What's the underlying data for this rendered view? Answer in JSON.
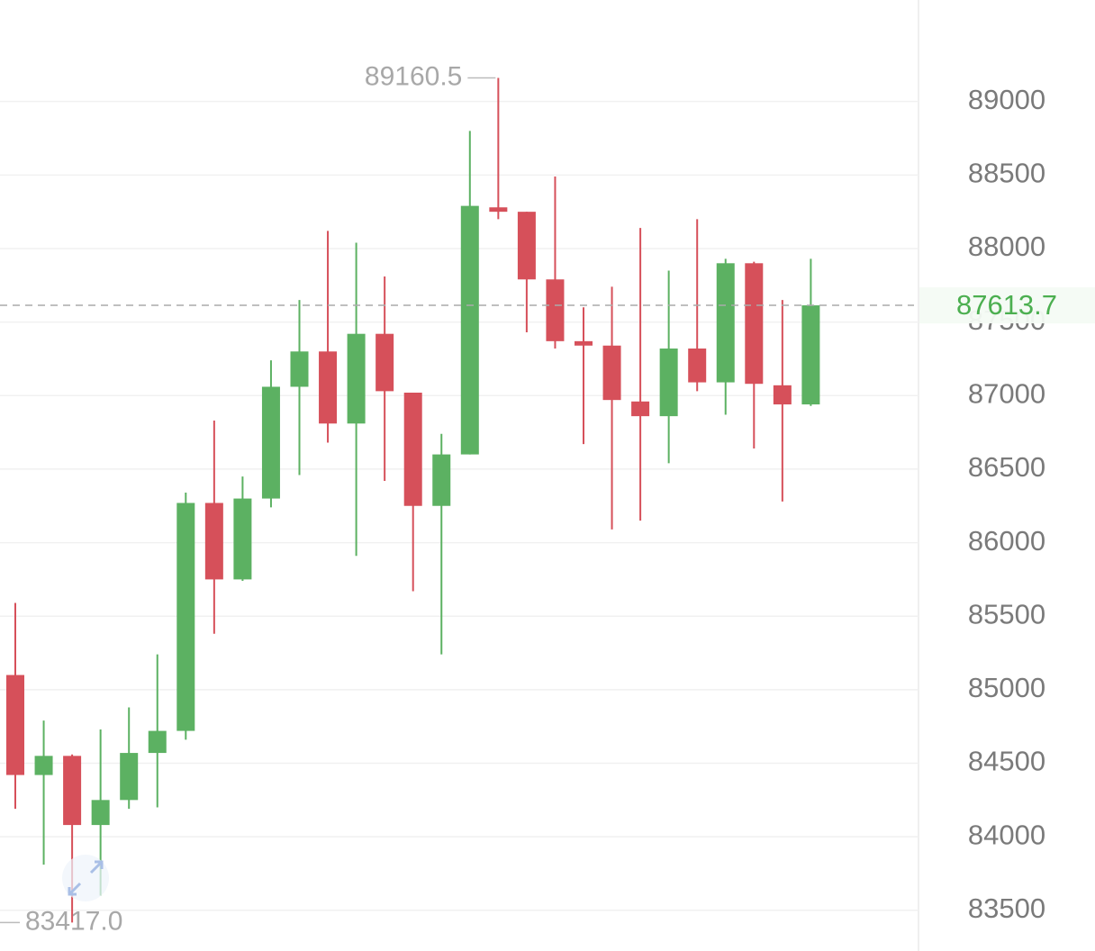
{
  "chart_data": {
    "type": "candlestick",
    "categories": [
      null,
      null,
      null,
      null,
      null,
      null,
      null,
      null,
      null,
      null,
      null,
      null,
      null,
      null,
      null,
      null,
      null,
      null,
      null,
      null,
      null,
      null,
      null,
      null,
      null,
      null,
      null,
      null,
      null
    ],
    "open": [
      85100,
      84420,
      84550,
      84080,
      84250,
      84570,
      84720,
      86270,
      85750,
      86300,
      87060,
      87300,
      86810,
      87420,
      87020,
      86250,
      86600,
      88280,
      88250,
      87790,
      87370,
      87340,
      86960,
      86860,
      87320,
      87090,
      87900,
      87070,
      86940
    ],
    "high": [
      85590,
      84790,
      84560,
      84730,
      84880,
      85240,
      86340,
      86830,
      86450,
      87240,
      87650,
      88120,
      88040,
      87810,
      87020,
      86740,
      88800,
      89160.5,
      88250,
      88490,
      87600,
      87740,
      88140,
      87850,
      88200,
      87930,
      87910,
      87650,
      87930
    ],
    "low": [
      84190,
      83810,
      83417,
      83600,
      84190,
      84200,
      84660,
      85380,
      85740,
      86240,
      86460,
      86680,
      85910,
      86420,
      85670,
      85240,
      86600,
      88200,
      87430,
      87320,
      86670,
      86090,
      86150,
      86540,
      87030,
      86870,
      86640,
      86280,
      86930
    ],
    "close": [
      84420,
      84550,
      84080,
      84250,
      84570,
      84720,
      86270,
      85750,
      86300,
      87060,
      87300,
      86810,
      87420,
      87030,
      86250,
      86600,
      88290,
      88250,
      87790,
      87370,
      87340,
      86970,
      86860,
      87320,
      87090,
      87900,
      87080,
      86940,
      87613.7
    ],
    "up_color": "#5cb162",
    "down_color": "#d6505a",
    "ylim": [
      83260,
      89690
    ],
    "yticks": [
      83500,
      84000,
      84500,
      85000,
      85500,
      86000,
      86500,
      87000,
      87500,
      88000,
      88500,
      89000
    ],
    "grid": true,
    "high_marker": 89160.5,
    "low_marker": {
      "value": 83417,
      "label": "83417.0"
    },
    "last_price": 87613.7,
    "last_price_color": "#4caf50"
  }
}
